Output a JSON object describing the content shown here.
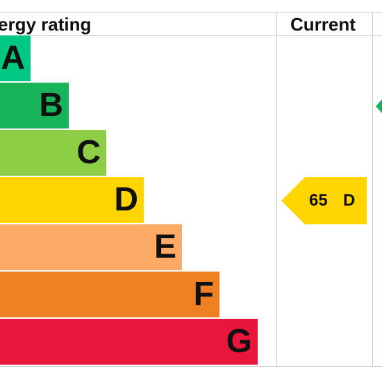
{
  "header": {
    "rating_title": "ergy rating",
    "current_title": "Current"
  },
  "chart_data": {
    "type": "bar",
    "categories": [
      "A",
      "B",
      "C",
      "D",
      "E",
      "F",
      "G"
    ],
    "colors": [
      "#00c781",
      "#19b459",
      "#8dce46",
      "#ffd500",
      "#fcaa65",
      "#ef8023",
      "#e9153b"
    ],
    "current": {
      "score": "65",
      "band": "D",
      "color": "#ffd500"
    },
    "potential": {
      "color": "#19b459"
    }
  }
}
